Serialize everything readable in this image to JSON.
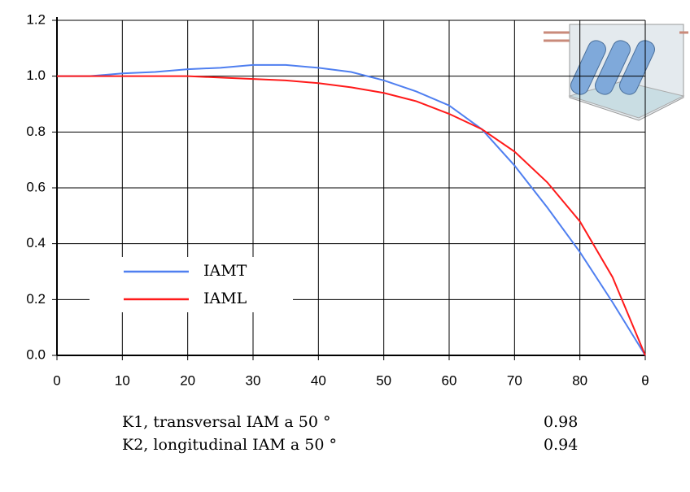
{
  "chart_data": {
    "type": "line",
    "x": [
      0,
      5,
      10,
      15,
      20,
      25,
      30,
      35,
      40,
      45,
      50,
      55,
      60,
      65,
      70,
      75,
      80,
      85,
      90
    ],
    "series": [
      {
        "name": "IAMT",
        "color": "#4f7ff0",
        "values": [
          1.0,
          1.0,
          1.01,
          1.015,
          1.025,
          1.03,
          1.04,
          1.04,
          1.03,
          1.015,
          0.985,
          0.945,
          0.895,
          0.81,
          0.68,
          0.53,
          0.37,
          0.19,
          0
        ]
      },
      {
        "name": "IAML",
        "color": "#ff1a1a",
        "values": [
          1.0,
          1.0,
          1.0,
          1.0,
          1.0,
          0.995,
          0.99,
          0.985,
          0.975,
          0.96,
          0.94,
          0.91,
          0.865,
          0.81,
          0.73,
          0.62,
          0.48,
          0.28,
          0
        ]
      }
    ],
    "xlim": [
      0,
      90
    ],
    "xticks": [
      0,
      10,
      20,
      30,
      40,
      50,
      60,
      70,
      80,
      {
        "value": 90,
        "label": "θ"
      }
    ],
    "ylim": [
      0,
      1.2
    ],
    "yticks": [
      {
        "value": 0,
        "label": "0.0"
      },
      0.2,
      0.4,
      0.6,
      0.8,
      {
        "value": 1,
        "label": "1.0"
      },
      1.2
    ],
    "grid": true
  },
  "table": {
    "rows": [
      [
        "K1, transversal IAM a 50 °",
        0.98
      ],
      [
        "K2, longitudinal IAM a 50  °",
        0.94
      ]
    ]
  }
}
